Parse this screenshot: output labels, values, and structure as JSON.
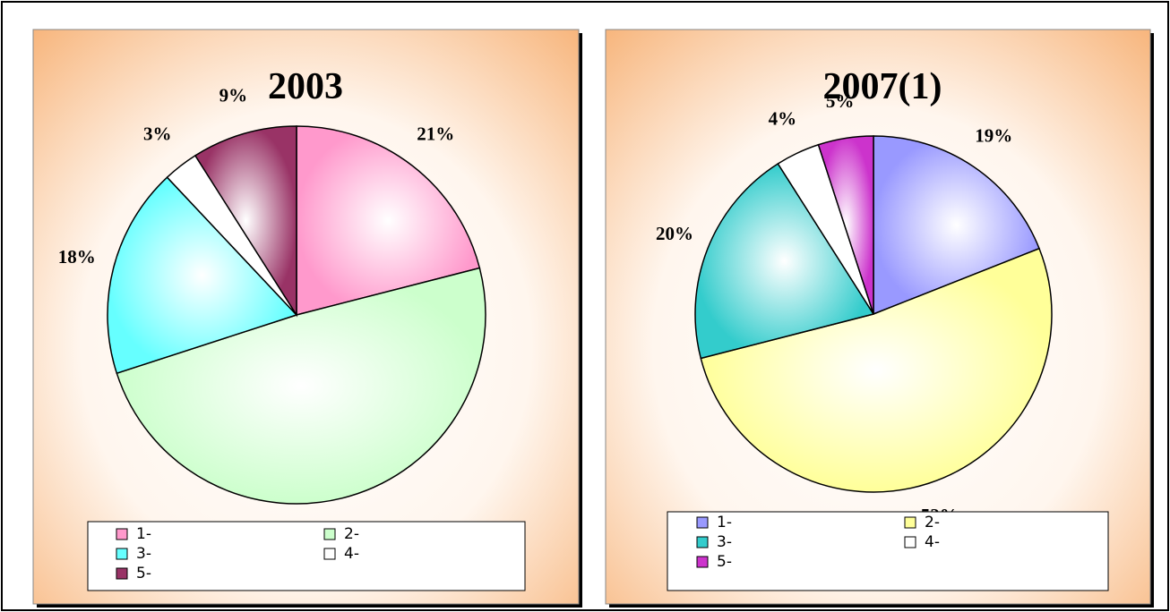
{
  "chart_data": [
    {
      "type": "pie",
      "title": "2003",
      "categories": [
        "1-",
        "2-",
        "3-",
        "4-",
        "5-"
      ],
      "values": [
        21,
        49,
        18,
        3,
        9
      ],
      "value_labels": [
        "21%",
        "49%",
        "18%",
        "3%",
        "9%"
      ],
      "colors": [
        "#ff99cc",
        "#ccffcc",
        "#66ffff",
        "#ffffff",
        "#993366"
      ]
    },
    {
      "type": "pie",
      "title": "2007(1)",
      "categories": [
        "1-",
        "2-",
        "3-",
        "4-",
        "5-"
      ],
      "values": [
        19,
        52,
        20,
        4,
        5
      ],
      "value_labels": [
        "19%",
        "52%",
        "20%",
        "4%",
        "5%"
      ],
      "colors": [
        "#9999ff",
        "#ffff99",
        "#33cccc",
        "#ffffff",
        "#cc33cc"
      ]
    }
  ]
}
